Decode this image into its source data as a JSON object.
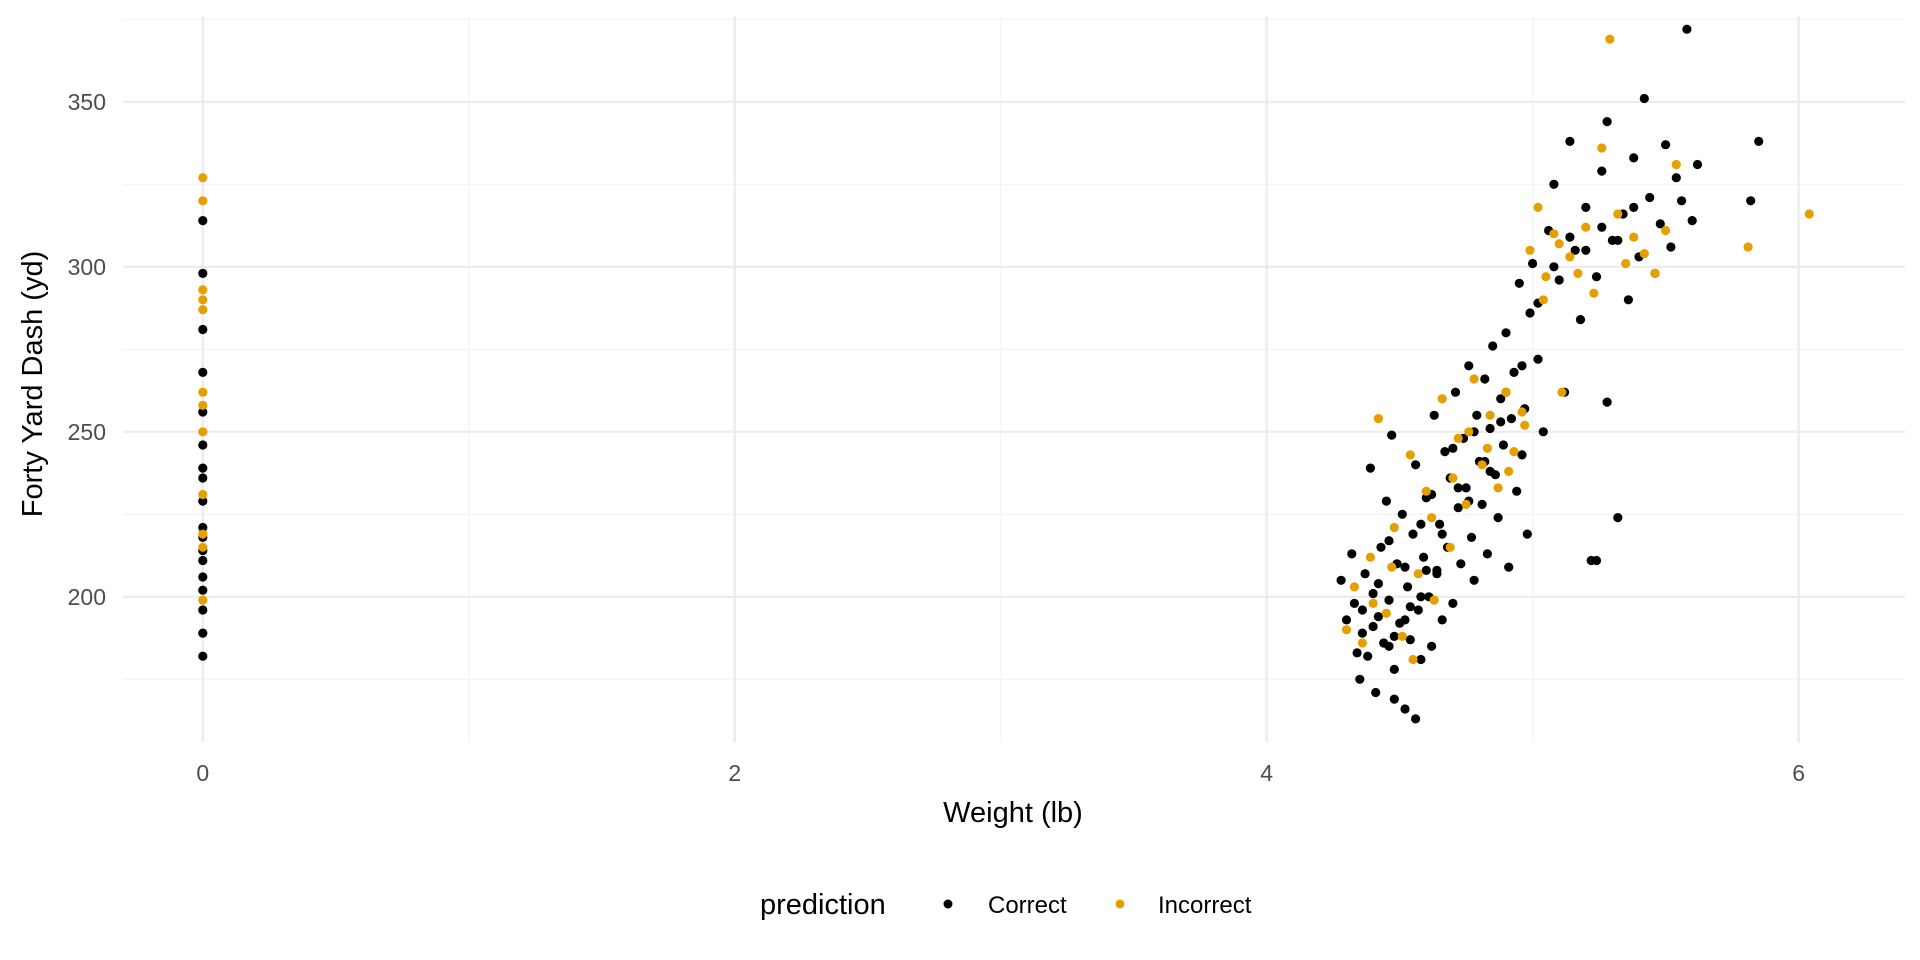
{
  "chart_data": {
    "type": "scatter",
    "title": "",
    "xlabel": "Weight (lb)",
    "ylabel": "Forty Yard Dash (yd)",
    "xlim": [
      -0.3,
      6.4
    ],
    "ylim": [
      156,
      376
    ],
    "x_ticks": [
      0,
      2,
      4,
      6
    ],
    "y_ticks": [
      200,
      250,
      300,
      350
    ],
    "x_tick_labels": [
      "0",
      "2",
      "4",
      "6"
    ],
    "y_tick_labels": [
      "200",
      "250",
      "300",
      "350"
    ],
    "grid": true,
    "legend": {
      "title": "prediction",
      "position": "bottom",
      "entries": [
        "Correct",
        "Incorrect"
      ]
    },
    "series": [
      {
        "name": "Correct",
        "color": "#000000",
        "points": [
          [
            0,
            182
          ],
          [
            0,
            189
          ],
          [
            0,
            196
          ],
          [
            0,
            202
          ],
          [
            0,
            206
          ],
          [
            0,
            211
          ],
          [
            0,
            214
          ],
          [
            0,
            218
          ],
          [
            0,
            221
          ],
          [
            0,
            229
          ],
          [
            0,
            236
          ],
          [
            0,
            239
          ],
          [
            0,
            246
          ],
          [
            0,
            256
          ],
          [
            0,
            268
          ],
          [
            0,
            281
          ],
          [
            0,
            298
          ],
          [
            0,
            314
          ],
          [
            4.28,
            205
          ],
          [
            4.3,
            193
          ],
          [
            4.32,
            213
          ],
          [
            4.33,
            198
          ],
          [
            4.35,
            175
          ],
          [
            4.36,
            189
          ],
          [
            4.37,
            207
          ],
          [
            4.38,
            182
          ],
          [
            4.39,
            239
          ],
          [
            4.4,
            201
          ],
          [
            4.41,
            171
          ],
          [
            4.42,
            194
          ],
          [
            4.43,
            215
          ],
          [
            4.44,
            186
          ],
          [
            4.45,
            229
          ],
          [
            4.46,
            199
          ],
          [
            4.47,
            249
          ],
          [
            4.48,
            178
          ],
          [
            4.49,
            210
          ],
          [
            4.5,
            192
          ],
          [
            4.51,
            225
          ],
          [
            4.52,
            166
          ],
          [
            4.53,
            203
          ],
          [
            4.54,
            187
          ],
          [
            4.55,
            219
          ],
          [
            4.56,
            240
          ],
          [
            4.57,
            196
          ],
          [
            4.58,
            181
          ],
          [
            4.59,
            212
          ],
          [
            4.6,
            230
          ],
          [
            4.61,
            200
          ],
          [
            4.62,
            185
          ],
          [
            4.63,
            255
          ],
          [
            4.64,
            208
          ],
          [
            4.65,
            222
          ],
          [
            4.66,
            193
          ],
          [
            4.67,
            244
          ],
          [
            4.68,
            215
          ],
          [
            4.69,
            236
          ],
          [
            4.7,
            198
          ],
          [
            4.71,
            262
          ],
          [
            4.72,
            227
          ],
          [
            4.73,
            210
          ],
          [
            4.74,
            248
          ],
          [
            4.75,
            233
          ],
          [
            4.76,
            270
          ],
          [
            4.77,
            218
          ],
          [
            4.78,
            205
          ],
          [
            4.79,
            255
          ],
          [
            4.8,
            241
          ],
          [
            4.81,
            228
          ],
          [
            4.82,
            266
          ],
          [
            4.83,
            213
          ],
          [
            4.84,
            251
          ],
          [
            4.85,
            276
          ],
          [
            4.86,
            237
          ],
          [
            4.87,
            224
          ],
          [
            4.88,
            260
          ],
          [
            4.89,
            246
          ],
          [
            4.9,
            280
          ],
          [
            4.91,
            209
          ],
          [
            4.92,
            254
          ],
          [
            4.93,
            268
          ],
          [
            4.94,
            232
          ],
          [
            4.95,
            295
          ],
          [
            4.96,
            243
          ],
          [
            4.97,
            257
          ],
          [
            4.98,
            219
          ],
          [
            4.99,
            286
          ],
          [
            5.0,
            301
          ],
          [
            5.02,
            272
          ],
          [
            5.04,
            250
          ],
          [
            5.06,
            311
          ],
          [
            5.08,
            325
          ],
          [
            5.1,
            296
          ],
          [
            5.12,
            262
          ],
          [
            5.14,
            338
          ],
          [
            5.16,
            305
          ],
          [
            5.18,
            284
          ],
          [
            5.2,
            318
          ],
          [
            5.22,
            211
          ],
          [
            5.24,
            297
          ],
          [
            5.26,
            329
          ],
          [
            5.28,
            344
          ],
          [
            5.3,
            308
          ],
          [
            5.32,
            224
          ],
          [
            5.34,
            316
          ],
          [
            5.36,
            290
          ],
          [
            5.38,
            333
          ],
          [
            5.4,
            303
          ],
          [
            5.42,
            351
          ],
          [
            5.44,
            321
          ],
          [
            5.46,
            298
          ],
          [
            5.48,
            313
          ],
          [
            5.5,
            337
          ],
          [
            5.52,
            306
          ],
          [
            5.54,
            327
          ],
          [
            5.56,
            320
          ],
          [
            5.58,
            372
          ],
          [
            5.6,
            314
          ],
          [
            5.62,
            331
          ],
          [
            5.82,
            320
          ],
          [
            5.85,
            338
          ],
          [
            4.58,
            222
          ],
          [
            4.52,
            209
          ],
          [
            4.46,
            217
          ],
          [
            4.62,
            231
          ],
          [
            4.7,
            245
          ],
          [
            4.36,
            196
          ],
          [
            4.42,
            204
          ],
          [
            4.48,
            188
          ],
          [
            4.54,
            197
          ],
          [
            4.6,
            208
          ],
          [
            4.66,
            219
          ],
          [
            4.72,
            233
          ],
          [
            4.78,
            250
          ],
          [
            4.84,
            238
          ],
          [
            4.9,
            262
          ],
          [
            4.96,
            270
          ],
          [
            5.02,
            289
          ],
          [
            5.08,
            300
          ],
          [
            5.14,
            309
          ],
          [
            5.2,
            305
          ],
          [
            5.26,
            312
          ],
          [
            5.32,
            308
          ],
          [
            5.38,
            318
          ],
          [
            4.34,
            183
          ],
          [
            4.4,
            191
          ],
          [
            4.46,
            185
          ],
          [
            4.52,
            193
          ],
          [
            4.58,
            200
          ],
          [
            4.64,
            207
          ],
          [
            4.76,
            229
          ],
          [
            4.82,
            241
          ],
          [
            4.88,
            253
          ],
          [
            5.28,
            259
          ],
          [
            5.24,
            211
          ],
          [
            4.56,
            163
          ],
          [
            4.48,
            169
          ]
        ]
      },
      {
        "name": "Incorrect",
        "color": "#E69F00",
        "points": [
          [
            0,
            199
          ],
          [
            0,
            215
          ],
          [
            0,
            219
          ],
          [
            0,
            231
          ],
          [
            0,
            250
          ],
          [
            0,
            258
          ],
          [
            0,
            262
          ],
          [
            0,
            287
          ],
          [
            0,
            290
          ],
          [
            0,
            293
          ],
          [
            0,
            320
          ],
          [
            0,
            327
          ],
          [
            4.3,
            190
          ],
          [
            4.33,
            203
          ],
          [
            4.36,
            186
          ],
          [
            4.39,
            212
          ],
          [
            4.42,
            254
          ],
          [
            4.45,
            195
          ],
          [
            4.48,
            221
          ],
          [
            4.51,
            188
          ],
          [
            4.54,
            243
          ],
          [
            4.57,
            207
          ],
          [
            4.6,
            232
          ],
          [
            4.63,
            199
          ],
          [
            4.66,
            260
          ],
          [
            4.69,
            215
          ],
          [
            4.72,
            248
          ],
          [
            4.75,
            228
          ],
          [
            4.78,
            266
          ],
          [
            4.81,
            240
          ],
          [
            4.84,
            255
          ],
          [
            4.87,
            233
          ],
          [
            4.9,
            262
          ],
          [
            4.93,
            244
          ],
          [
            4.96,
            256
          ],
          [
            4.99,
            305
          ],
          [
            5.02,
            318
          ],
          [
            5.05,
            297
          ],
          [
            5.08,
            310
          ],
          [
            5.11,
            262
          ],
          [
            5.14,
            303
          ],
          [
            5.17,
            298
          ],
          [
            5.2,
            312
          ],
          [
            5.23,
            292
          ],
          [
            5.26,
            336
          ],
          [
            5.29,
            369
          ],
          [
            5.32,
            316
          ],
          [
            5.35,
            301
          ],
          [
            5.38,
            309
          ],
          [
            5.42,
            304
          ],
          [
            5.46,
            298
          ],
          [
            5.5,
            311
          ],
          [
            5.54,
            331
          ],
          [
            5.81,
            306
          ],
          [
            6.04,
            316
          ],
          [
            4.4,
            198
          ],
          [
            4.47,
            209
          ],
          [
            4.55,
            181
          ],
          [
            4.62,
            224
          ],
          [
            4.7,
            236
          ],
          [
            4.76,
            250
          ],
          [
            4.83,
            245
          ],
          [
            4.91,
            238
          ],
          [
            4.97,
            252
          ],
          [
            5.04,
            290
          ],
          [
            5.1,
            307
          ]
        ]
      }
    ]
  }
}
